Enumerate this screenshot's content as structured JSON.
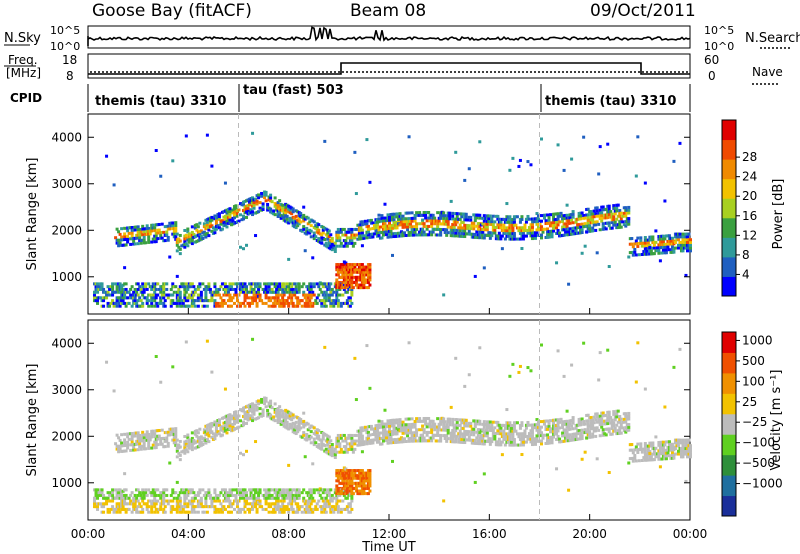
{
  "header": {
    "station": "Goose Bay (fitACF)",
    "beam": "Beam 08",
    "date": "09/Oct/2011"
  },
  "top_strip": {
    "nsky_label": "N.Sky",
    "nsearch_label": "N.Search",
    "ticks_left": [
      "10^5",
      "10^0"
    ],
    "ticks_right": [
      "10^5",
      "10^0"
    ],
    "freq_label": [
      "Freq.",
      "[MHz]"
    ],
    "freq_ticks": [
      "18",
      "8"
    ],
    "nave_label": "Nave",
    "nave_ticks": [
      "60",
      "0"
    ],
    "cpid_label": "CPID",
    "cpid_segments": [
      {
        "label": "themis (tau) 3310",
        "start_hr": 0.0,
        "end_hr": 6.0
      },
      {
        "label": "tau (fast) 503",
        "start_hr": 6.0,
        "end_hr": 18.0
      },
      {
        "label": "themis (tau) 3310",
        "start_hr": 18.0,
        "end_hr": 24.0
      }
    ]
  },
  "chart_data": [
    {
      "type": "heatmap",
      "panel": "power",
      "ylabel": "Slant Range [km]",
      "xlabel": "Time UT",
      "xlim_hours": [
        0,
        24
      ],
      "ylim_km": [
        200,
        4500
      ],
      "yticks": [
        1000,
        2000,
        3000,
        4000
      ],
      "xtick_labels": [
        "00:00",
        "04:00",
        "08:00",
        "12:00",
        "16:00",
        "20:00",
        "00:00"
      ],
      "colorbar": {
        "label": "Power [dB]",
        "ticks": [
          "4",
          "8",
          "12",
          "16",
          "20",
          "24",
          "28"
        ],
        "colors": [
          "#0000ff",
          "#1f5fc0",
          "#2f9a9a",
          "#3aa040",
          "#a8d020",
          "#f2c200",
          "#f08a00",
          "#f04a00",
          "#e00000"
        ]
      }
    },
    {
      "type": "heatmap",
      "panel": "velocity",
      "ylabel": "Slant Range [km]",
      "xlabel": "Time UT",
      "xlim_hours": [
        0,
        24
      ],
      "ylim_km": [
        200,
        4500
      ],
      "yticks": [
        1000,
        2000,
        3000,
        4000
      ],
      "xtick_labels": [
        "00:00",
        "04:00",
        "08:00",
        "12:00",
        "16:00",
        "20:00",
        "00:00"
      ],
      "colorbar": {
        "label": "Velocity [m s⁻¹]",
        "ticks": [
          "1000",
          "500",
          "100",
          "25",
          "−25",
          "−100",
          "−500",
          "−1000"
        ],
        "colors": [
          "#1a2f9a",
          "#1f6f9f",
          "#2e8f3a",
          "#5fd020",
          "#bcbcbc",
          "#f2c200",
          "#f09000",
          "#f05000",
          "#e00000"
        ]
      }
    }
  ]
}
